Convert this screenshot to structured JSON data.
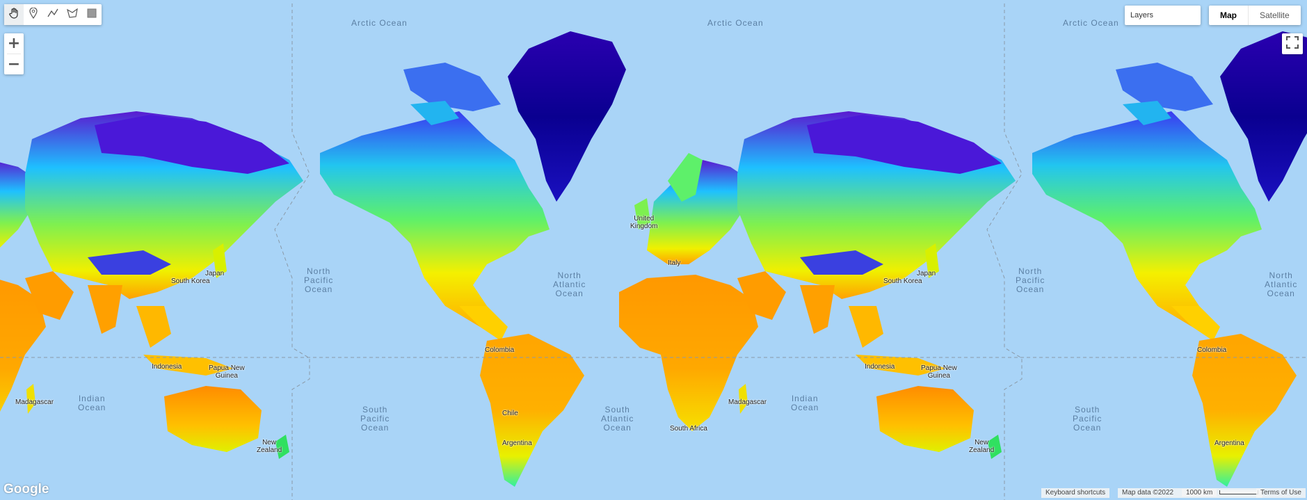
{
  "toolbar": {
    "tools": [
      {
        "icon": "hand-icon",
        "active": true
      },
      {
        "icon": "marker-icon",
        "active": false
      },
      {
        "icon": "polyline-icon",
        "active": false
      },
      {
        "icon": "polygon-icon",
        "active": false
      },
      {
        "icon": "rectangle-icon",
        "active": false
      }
    ]
  },
  "zoom": {
    "in_label": "+",
    "out_label": "−"
  },
  "layers": {
    "label": "Layers"
  },
  "map_type": {
    "map_label": "Map",
    "satellite_label": "Satellite",
    "selected": "Map"
  },
  "fullscreen": {
    "icon": "fullscreen-icon"
  },
  "ocean_labels": {
    "arctic_1": "Arctic Ocean",
    "arctic_2": "Arctic Ocean",
    "arctic_3": "Arctic Ocean",
    "north_pacific_1": "North\nPacific\nOcean",
    "north_pacific_2": "North\nPacific\nOcean",
    "north_atlantic_1": "North\nAtlantic\nOcean",
    "north_atlantic_2": "North\nAtlantic\nOcean",
    "indian_1": "Indian\nOcean",
    "indian_2": "Indian\nOcean",
    "south_pacific_1": "South\nPacific\nOcean",
    "south_pacific_2": "South\nPacific\nOcean",
    "south_atlantic": "South\nAtlantic\nOcean"
  },
  "land_labels": {
    "japan_1": "Japan",
    "japan_2": "Japan",
    "south_korea_1": "South Korea",
    "south_korea_2": "South Korea",
    "indonesia_1": "Indonesia",
    "indonesia_2": "Indonesia",
    "png_1": "Papua New\nGuinea",
    "png_2": "Papua New\nGuinea",
    "madagascar_1": "Madagascar",
    "madagascar_2": "Madagascar",
    "new_zealand_1": "New\nZealand",
    "new_zealand_2": "New\nZealand",
    "uk": "United\nKingdom",
    "italy": "Italy",
    "colombia_1": "Colombia",
    "colombia_2": "Colombia",
    "south_africa": "South Africa",
    "chile": "Chile",
    "argentina_1": "Argentina",
    "argentina_2": "Argentina"
  },
  "footer": {
    "keyboard_shortcuts": "Keyboard shortcuts",
    "map_data": "Map data ©2022",
    "scale": "1000 km",
    "terms": "Terms of Use"
  },
  "branding": {
    "logo_text": "Google"
  },
  "colors": {
    "ocean": "#a9d4f7",
    "cold": "#1a0a9e",
    "warm": "#ffa200"
  }
}
